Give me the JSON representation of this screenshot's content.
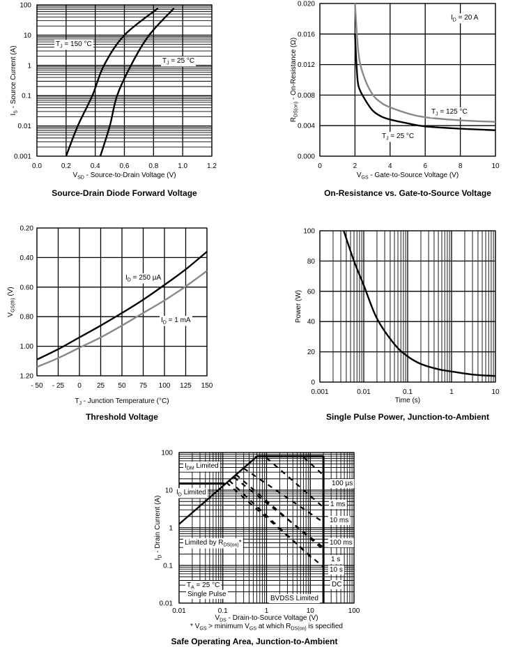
{
  "chart_data": [
    {
      "type": "line",
      "title": "Source-Drain Diode Forward Voltage",
      "xlabel": [
        "V",
        "SD",
        " - Source-to-Drain Voltage (V)"
      ],
      "ylabel": [
        "I",
        "S",
        " - Source Current (A)"
      ],
      "xscale": "linear",
      "yscale": "log",
      "xlim": [
        0,
        1.2
      ],
      "ylim": [
        0.001,
        100
      ],
      "xticks": [
        0,
        0.2,
        0.4,
        0.6,
        0.8,
        1.0,
        1.2
      ],
      "xtick_labels": [
        "0.0",
        "0.2",
        "0.4",
        "0.6",
        "0.8",
        "1.0",
        "1.2"
      ],
      "yticks": [
        0.001,
        0.01,
        0.1,
        1,
        10,
        100
      ],
      "ytick_labels": [
        "0.001",
        "0.01",
        "0.1",
        "1",
        "10",
        "100"
      ],
      "grid": true,
      "series": [
        {
          "label": [
            "T",
            "J",
            " = 150 °C"
          ],
          "color": "#000000",
          "points": [
            [
              0.2,
              0.001
            ],
            [
              0.28,
              0.01
            ],
            [
              0.38,
              0.1
            ],
            [
              0.46,
              1
            ],
            [
              0.6,
              10
            ],
            [
              0.83,
              77
            ]
          ]
        },
        {
          "label": [
            "T",
            "J",
            " = 25 °C"
          ],
          "color": "#000000",
          "points": [
            [
              0.435,
              0.001
            ],
            [
              0.5,
              0.01
            ],
            [
              0.55,
              0.1
            ],
            [
              0.645,
              1
            ],
            [
              0.77,
              10
            ],
            [
              0.94,
              77
            ]
          ]
        }
      ],
      "annotations": []
    },
    {
      "type": "line",
      "title": "On-Resistance vs. Gate-to-Source Voltage",
      "xlabel": [
        "V",
        "GS",
        " - Gate-to-Source Voltage (V)"
      ],
      "ylabel": [
        "R",
        "DS(on)",
        " - On-Resistance (Ω)"
      ],
      "xscale": "linear",
      "yscale": "linear",
      "xlim": [
        0,
        10
      ],
      "ylim": [
        0,
        0.02
      ],
      "xticks": [
        0,
        2,
        4,
        6,
        8,
        10
      ],
      "xtick_labels": [
        "0",
        "2",
        "4",
        "6",
        "8",
        "10"
      ],
      "yticks": [
        0,
        0.004,
        0.008,
        0.012,
        0.016,
        0.02
      ],
      "ytick_labels": [
        "0.000",
        "0.004",
        "0.008",
        "0.012",
        "0.016",
        "0.020"
      ],
      "grid": true,
      "series": [
        {
          "label": [
            "T",
            "J",
            " = 125 °C"
          ],
          "color": "#888888",
          "points": [
            [
              2,
              0.02
            ],
            [
              2.2,
              0.0135
            ],
            [
              2.5,
              0.0105
            ],
            [
              3,
              0.0081
            ],
            [
              3.5,
              0.007
            ],
            [
              4,
              0.0064
            ],
            [
              5,
              0.0056
            ],
            [
              6,
              0.0051
            ],
            [
              8,
              0.0047
            ],
            [
              10,
              0.0045
            ]
          ]
        },
        {
          "label": [
            "T",
            "J",
            " = 25 °C"
          ],
          "color": "#000000",
          "points": [
            [
              2,
              0.016
            ],
            [
              2.1,
              0.0115
            ],
            [
              2.2,
              0.0092
            ],
            [
              2.5,
              0.0077
            ],
            [
              3,
              0.006
            ],
            [
              3.5,
              0.0052
            ],
            [
              4,
              0.0048
            ],
            [
              5,
              0.0043
            ],
            [
              6,
              0.0039
            ],
            [
              8,
              0.0036
            ],
            [
              10,
              0.0034
            ]
          ]
        }
      ],
      "annotations": [
        [
          "I",
          "D",
          " = 20 A"
        ]
      ]
    },
    {
      "type": "line",
      "title": "Threshold Voltage",
      "xlabel": [
        "T",
        "J",
        " - Junction Temperature (°C)"
      ],
      "ylabel": [
        "V",
        "GS(th)",
        " (V)"
      ],
      "xscale": "linear",
      "yscale": "linear",
      "y_reversed": true,
      "xlim": [
        -50,
        150
      ],
      "ylim": [
        0.2,
        1.2
      ],
      "xticks": [
        -50,
        -25,
        0,
        25,
        50,
        75,
        100,
        125,
        150
      ],
      "xtick_labels": [
        "- 50",
        "- 25",
        "0",
        "25",
        "50",
        "75",
        "100",
        "125",
        "150"
      ],
      "yticks": [
        0.2,
        0.4,
        0.6,
        0.8,
        1.0,
        1.2
      ],
      "ytick_labels": [
        "0.20",
        "0.40",
        "0.60",
        "0.80",
        "1.00",
        "1.20"
      ],
      "grid": true,
      "series": [
        {
          "label": [
            "I",
            "D",
            " = 250 µA"
          ],
          "color": "#000000",
          "points": [
            [
              -50,
              1.09
            ],
            [
              -25,
              1.02
            ],
            [
              0,
              0.94
            ],
            [
              25,
              0.86
            ],
            [
              50,
              0.775
            ],
            [
              75,
              0.685
            ],
            [
              100,
              0.585
            ],
            [
              125,
              0.48
            ],
            [
              150,
              0.36
            ]
          ]
        },
        {
          "label": [
            "I",
            "D",
            " = 1 mA"
          ],
          "color": "#888888",
          "points": [
            [
              -50,
              1.14
            ],
            [
              -25,
              1.08
            ],
            [
              0,
              1.01
            ],
            [
              25,
              0.94
            ],
            [
              50,
              0.86
            ],
            [
              75,
              0.775
            ],
            [
              100,
              0.69
            ],
            [
              125,
              0.595
            ],
            [
              150,
              0.49
            ]
          ]
        }
      ],
      "annotations": []
    },
    {
      "type": "line",
      "title": "Single Pulse Power, Junction-to-Ambient",
      "xlabel": [
        "Time (s)"
      ],
      "ylabel": [
        "Power (W)"
      ],
      "xscale": "log",
      "yscale": "linear",
      "xlim": [
        0.001,
        10
      ],
      "ylim": [
        0,
        100
      ],
      "xticks": [
        0.001,
        0.01,
        0.1,
        1,
        10
      ],
      "xtick_labels": [
        "0.001",
        "0.01",
        "0.1",
        "1",
        "10"
      ],
      "yticks": [
        0,
        20,
        40,
        60,
        80,
        100
      ],
      "ytick_labels": [
        "0",
        "20",
        "40",
        "60",
        "80",
        "100"
      ],
      "grid": true,
      "series": [
        {
          "color": "#000000",
          "points": [
            [
              0.0035,
              100
            ],
            [
              0.006,
              80
            ],
            [
              0.01,
              64
            ],
            [
              0.02,
              42
            ],
            [
              0.05,
              25
            ],
            [
              0.1,
              17
            ],
            [
              0.2,
              12
            ],
            [
              0.5,
              8.5
            ],
            [
              1,
              7
            ],
            [
              3,
              5
            ],
            [
              10,
              4
            ]
          ]
        }
      ],
      "annotations": []
    },
    {
      "type": "line",
      "title": "Safe Operating Area, Junction-to-Ambient",
      "xlabel": [
        "V",
        "DS",
        " - Drain-to-Source Voltage (V)"
      ],
      "ylabel": [
        "I",
        "D",
        " - Drain Current (A)"
      ],
      "footnote": [
        "* V",
        "GS",
        " > minimum V",
        "GS",
        " at which R",
        "DS(on)",
        " is specified"
      ],
      "xscale": "log",
      "yscale": "log",
      "xlim": [
        0.01,
        100
      ],
      "ylim": [
        0.01,
        100
      ],
      "xticks": [
        0.01,
        0.1,
        1,
        10,
        100
      ],
      "xtick_labels": [
        "0.01",
        "0.1",
        "1",
        "10",
        "100"
      ],
      "yticks": [
        0.01,
        0.1,
        1,
        10,
        100
      ],
      "ytick_labels": [
        "0.01",
        "0.1",
        "1",
        "10",
        "100"
      ],
      "grid": true,
      "series": [
        {
          "color": "#000000",
          "style": "solid",
          "points": [
            [
              0.01,
              1.25
            ],
            [
              0.6,
              78
            ]
          ]
        },
        {
          "color": "#000000",
          "style": "limit",
          "points": [
            [
              0.01,
              15
            ],
            [
              0.11,
              15
            ]
          ]
        },
        {
          "color": "#000000",
          "style": "limit",
          "points": [
            [
              0.6,
              80
            ],
            [
              20,
              80
            ]
          ]
        },
        {
          "color": "#000000",
          "style": "limit",
          "points": [
            [
              20,
              80
            ],
            [
              20,
              0.01
            ]
          ]
        },
        {
          "label": [
            "100 µs"
          ],
          "color": "#000000",
          "style": "dashed",
          "points": [
            [
              7,
              75
            ],
            [
              20,
              25
            ]
          ]
        },
        {
          "label": [
            "1 ms"
          ],
          "color": "#000000",
          "style": "dashed",
          "points": [
            [
              1,
              72
            ],
            [
              20,
              3.5
            ]
          ]
        },
        {
          "label": [
            "10 ms"
          ],
          "color": "#000000",
          "style": "dashed",
          "points": [
            [
              0.3,
              38
            ],
            [
              20,
              1.4
            ]
          ]
        },
        {
          "label": [
            "100 ms"
          ],
          "color": "#000000",
          "style": "dashed",
          "points": [
            [
              0.18,
              22
            ],
            [
              20,
              0.3
            ]
          ]
        },
        {
          "label": [
            "1 s"
          ],
          "color": "#000000",
          "style": "dashed",
          "points": [
            [
              0.14,
              18
            ],
            [
              12,
              0.14
            ]
          ]
        },
        {
          "label": [
            "10 s"
          ],
          "color": "#000000",
          "style": "dashed",
          "points": [
            [
              0.12,
              16
            ],
            [
              20,
              0.09
            ]
          ]
        },
        {
          "label": [
            "DC"
          ],
          "color": "#000000",
          "style": "dashed",
          "points": [
            [
              0.2,
              26
            ],
            [
              20,
              0.26
            ]
          ]
        }
      ],
      "annotations": [
        [
          "I",
          "DM",
          " Limited"
        ],
        [
          "I",
          "D",
          " Limited"
        ],
        [
          "Limited by R",
          "DS(on)",
          "*"
        ],
        [
          "T",
          "A",
          " = 25 °C"
        ],
        [
          "Single Pulse"
        ],
        [
          "BVDSS Limited"
        ]
      ]
    }
  ]
}
